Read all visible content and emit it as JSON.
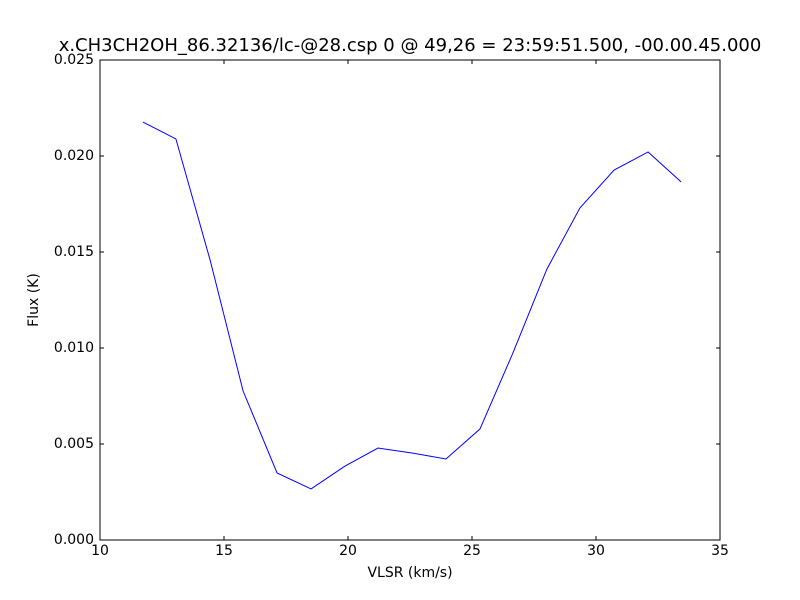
{
  "chart_data": {
    "type": "line",
    "title": "x.CH3CH2OH_86.32136/lc-@28.csp 0 @ 49,26 = 23:59:51.500, -00.00.45.000",
    "x_label": "VLSR (km/s)",
    "y_label": "Flux (K)",
    "x": [
      11.73,
      13.06,
      14.44,
      15.77,
      17.14,
      18.51,
      19.88,
      21.21,
      22.58,
      23.95,
      25.32,
      26.65,
      28.02,
      29.35,
      30.73,
      32.1,
      33.43
    ],
    "series": [
      {
        "name": "Flux",
        "color": "#0000ff",
        "values": [
          0.02177,
          0.02089,
          0.01458,
          0.00776,
          0.00349,
          0.00266,
          0.00385,
          0.00479,
          0.00453,
          0.00422,
          0.00578,
          0.00974,
          0.01411,
          0.01729,
          0.01927,
          0.02021,
          0.01865
        ]
      }
    ],
    "xlim": [
      10,
      35
    ],
    "xticks": [
      10,
      15,
      20,
      25,
      30,
      35
    ],
    "ylim": [
      0,
      0.025
    ],
    "yticks": [
      {
        "value": 0,
        "label": "0.000"
      },
      {
        "value": 0.005,
        "label": "0.005"
      },
      {
        "value": 0.01,
        "label": "0.010"
      },
      {
        "value": 0.015,
        "label": "0.015"
      },
      {
        "value": 0.02,
        "label": "0.020"
      },
      {
        "value": 0.025,
        "label": "0.025"
      }
    ],
    "grid": false
  }
}
